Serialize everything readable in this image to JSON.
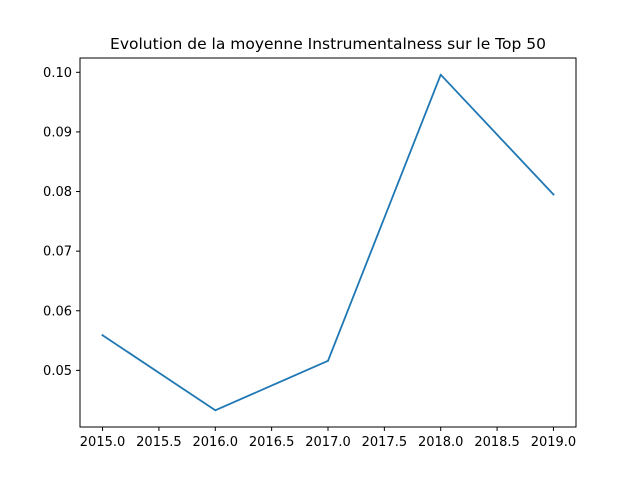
{
  "chart_data": {
    "type": "line",
    "title": "Evolution de la moyenne Instrumentalness sur le Top 50",
    "xlabel": "",
    "ylabel": "",
    "x": [
      2015,
      2016,
      2017,
      2018,
      2019
    ],
    "series": [
      {
        "values": [
          0.0559,
          0.0433,
          0.0516,
          0.0996,
          0.0795
        ],
        "color": "#1f77b4"
      }
    ],
    "xlim": [
      2014.8,
      2019.2
    ],
    "ylim": [
      0.0405,
      0.1024
    ],
    "xticks": [
      2015.0,
      2015.5,
      2016.0,
      2016.5,
      2017.0,
      2017.5,
      2018.0,
      2018.5,
      2019.0
    ],
    "xtick_labels": [
      "2015.0",
      "2015.5",
      "2016.0",
      "2016.5",
      "2017.0",
      "2017.5",
      "2018.0",
      "2018.5",
      "2019.0"
    ],
    "yticks": [
      0.05,
      0.06,
      0.07,
      0.08,
      0.09,
      0.1
    ],
    "ytick_labels": [
      "0.05",
      "0.06",
      "0.07",
      "0.08",
      "0.09",
      "0.10"
    ],
    "grid": false,
    "legend": false
  }
}
